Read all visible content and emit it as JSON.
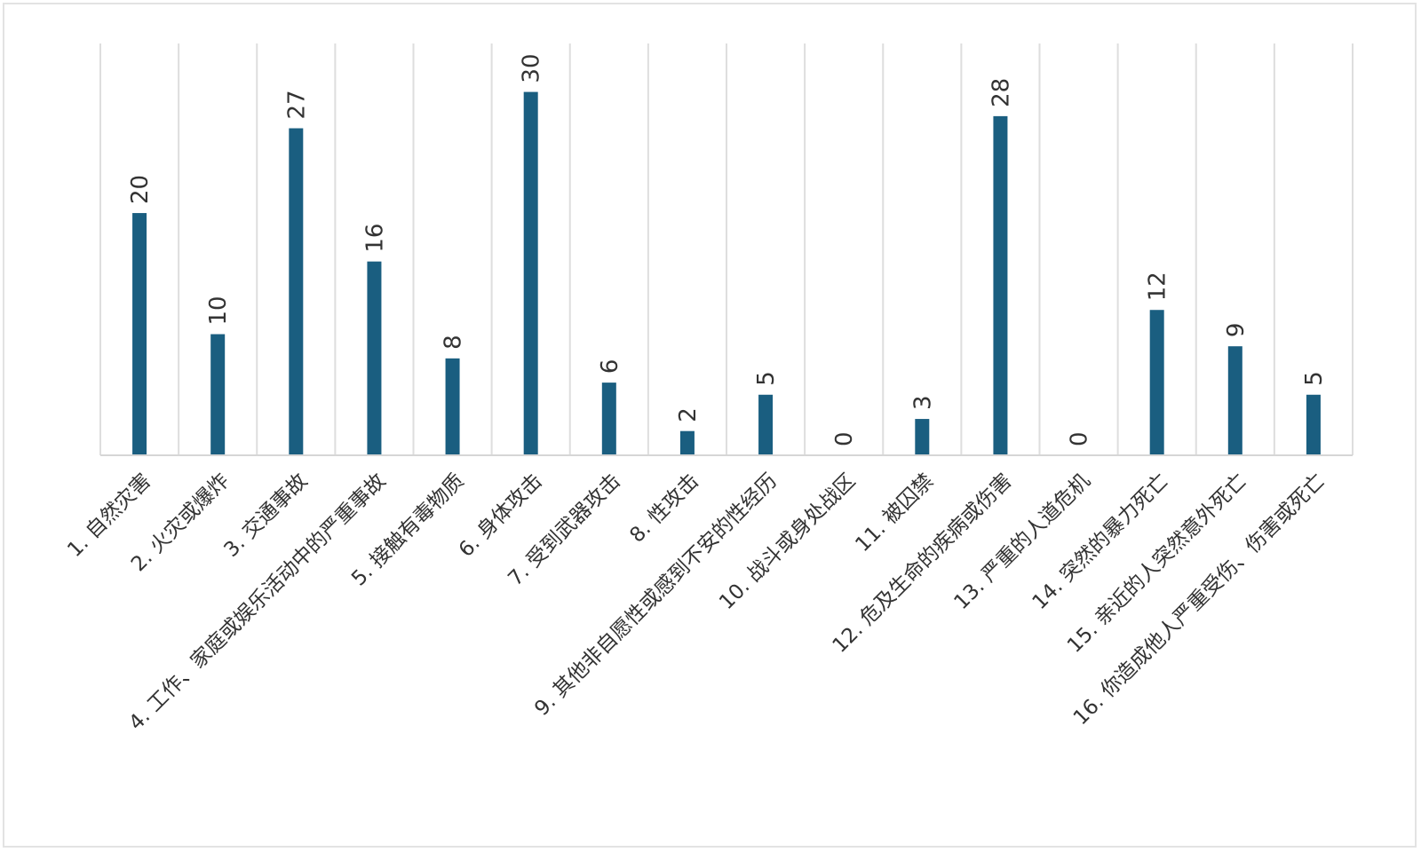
{
  "chart_data": {
    "type": "bar",
    "title": "",
    "xlabel": "",
    "ylabel": "",
    "categories": [
      "1. 自然灾害",
      "2. 火灾或爆炸",
      "3. 交通事故",
      "4. 工作、家庭或娱乐活动中的严重事故",
      "5. 接触有毒物质",
      "6. 身体攻击",
      "7. 受到武器攻击",
      "8. 性攻击",
      "9. 其他非自愿性或感到不安的性经历",
      "10. 战斗或身处战区",
      "11. 被囚禁",
      "12. 危及生命的疾病或伤害",
      "13. 严重的人道危机",
      "14. 突然的暴力死亡",
      "15. 亲近的人突然意外死亡",
      "16. 你造成他人严重受伤、伤害或死亡"
    ],
    "values": [
      20,
      10,
      27,
      16,
      8,
      30,
      6,
      2,
      5,
      0,
      3,
      28,
      0,
      12,
      9,
      5
    ],
    "ylim": [
      0,
      34
    ],
    "grid": "vertical",
    "legend": "none",
    "bar_color": "#1a5e80",
    "data_labels": true
  }
}
